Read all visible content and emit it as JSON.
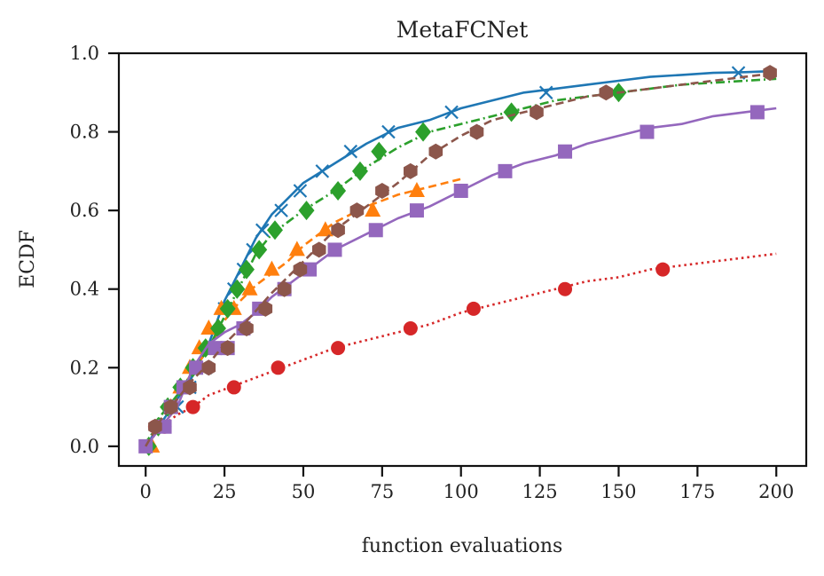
{
  "chart_data": {
    "type": "line",
    "title": "MetaFCNet",
    "xlabel": "function evaluations",
    "ylabel": "ECDF",
    "xlim": [
      -8.5,
      209.5
    ],
    "ylim": [
      -0.05,
      1.0
    ],
    "xticks": [
      0,
      25,
      50,
      75,
      100,
      125,
      150,
      175,
      200
    ],
    "yticks": [
      0.0,
      0.2,
      0.4,
      0.6,
      0.8,
      1.0
    ],
    "xtick_labels": [
      "0",
      "25",
      "50",
      "75",
      "100",
      "125",
      "150",
      "175",
      "200"
    ],
    "ytick_labels": [
      "0.0",
      "0.2",
      "0.4",
      "0.6",
      "0.8",
      "1.0"
    ],
    "grid": false,
    "legend": "none",
    "series": [
      {
        "color": "#1f77b4",
        "linestyle": "solid",
        "marker": "x",
        "x": [
          0,
          5,
          10,
          15,
          20,
          25,
          30,
          35,
          40,
          45,
          50,
          60,
          70,
          80,
          90,
          100,
          110,
          120,
          130,
          140,
          150,
          160,
          170,
          180,
          190,
          200
        ],
        "y": [
          0.0,
          0.06,
          0.12,
          0.18,
          0.26,
          0.37,
          0.45,
          0.53,
          0.59,
          0.63,
          0.67,
          0.72,
          0.77,
          0.81,
          0.83,
          0.86,
          0.88,
          0.9,
          0.91,
          0.92,
          0.93,
          0.94,
          0.945,
          0.95,
          0.952,
          0.955
        ],
        "marker_x": [
          0,
          5,
          10,
          14,
          19,
          22,
          25,
          28,
          31,
          34,
          37,
          43,
          49,
          56,
          65,
          77,
          97,
          127,
          188
        ],
        "marker_y": [
          0.0,
          0.05,
          0.1,
          0.15,
          0.2,
          0.25,
          0.35,
          0.4,
          0.45,
          0.5,
          0.55,
          0.6,
          0.65,
          0.7,
          0.75,
          0.8,
          0.85,
          0.9,
          0.95
        ]
      },
      {
        "color": "#ff7f0e",
        "linestyle": "dashed",
        "marker": "triangle",
        "x": [
          0,
          5,
          10,
          15,
          20,
          25,
          30,
          35,
          40,
          45,
          50,
          55,
          60,
          65,
          70,
          80,
          90,
          100
        ],
        "y": [
          0.0,
          0.07,
          0.13,
          0.19,
          0.25,
          0.32,
          0.37,
          0.41,
          0.44,
          0.47,
          0.51,
          0.54,
          0.57,
          0.59,
          0.61,
          0.64,
          0.66,
          0.68
        ],
        "marker_x": [
          2,
          5,
          8,
          11,
          14,
          17,
          20,
          24,
          28,
          33,
          40,
          48,
          57,
          72,
          86
        ],
        "marker_y": [
          0.0,
          0.05,
          0.1,
          0.15,
          0.2,
          0.25,
          0.3,
          0.35,
          0.35,
          0.4,
          0.45,
          0.5,
          0.55,
          0.6,
          0.65
        ]
      },
      {
        "color": "#2ca02c",
        "linestyle": "dashdot",
        "marker": "diamond",
        "x": [
          0,
          5,
          10,
          15,
          20,
          25,
          30,
          35,
          40,
          50,
          60,
          70,
          80,
          90,
          100,
          110,
          120,
          130,
          140,
          150,
          160,
          170,
          180,
          190,
          200
        ],
        "y": [
          0.0,
          0.08,
          0.13,
          0.19,
          0.25,
          0.33,
          0.41,
          0.49,
          0.54,
          0.6,
          0.65,
          0.71,
          0.76,
          0.8,
          0.82,
          0.84,
          0.86,
          0.88,
          0.89,
          0.9,
          0.91,
          0.92,
          0.925,
          0.93,
          0.935
        ],
        "marker_x": [
          1,
          4,
          7,
          11,
          15,
          19,
          23,
          26,
          29,
          32,
          36,
          41,
          51,
          61,
          68,
          74,
          88,
          116,
          150
        ],
        "marker_y": [
          0.0,
          0.05,
          0.1,
          0.15,
          0.2,
          0.25,
          0.3,
          0.35,
          0.4,
          0.45,
          0.5,
          0.55,
          0.6,
          0.65,
          0.7,
          0.75,
          0.8,
          0.85,
          0.9
        ]
      },
      {
        "color": "#d62728",
        "linestyle": "dotted",
        "marker": "circle",
        "x": [
          0,
          5,
          10,
          15,
          20,
          30,
          40,
          50,
          60,
          70,
          80,
          90,
          100,
          110,
          120,
          130,
          140,
          150,
          160,
          170,
          180,
          190,
          200
        ],
        "y": [
          0.0,
          0.05,
          0.08,
          0.1,
          0.13,
          0.16,
          0.19,
          0.22,
          0.25,
          0.27,
          0.29,
          0.31,
          0.34,
          0.36,
          0.38,
          0.4,
          0.42,
          0.43,
          0.45,
          0.46,
          0.47,
          0.48,
          0.49
        ],
        "marker_x": [
          3,
          6,
          15,
          28,
          42,
          61,
          84,
          104,
          133,
          164
        ],
        "marker_y": [
          0.05,
          0.05,
          0.1,
          0.15,
          0.2,
          0.25,
          0.3,
          0.35,
          0.4,
          0.45
        ]
      },
      {
        "color": "#9467bd",
        "linestyle": "solid",
        "marker": "square",
        "x": [
          0,
          5,
          10,
          15,
          20,
          25,
          30,
          35,
          40,
          45,
          50,
          60,
          70,
          80,
          90,
          100,
          110,
          120,
          130,
          140,
          150,
          160,
          170,
          180,
          190,
          200
        ],
        "y": [
          0.0,
          0.05,
          0.1,
          0.2,
          0.26,
          0.29,
          0.31,
          0.34,
          0.38,
          0.41,
          0.44,
          0.5,
          0.54,
          0.58,
          0.61,
          0.65,
          0.69,
          0.72,
          0.74,
          0.77,
          0.79,
          0.81,
          0.82,
          0.84,
          0.85,
          0.86
        ],
        "marker_x": [
          0,
          6,
          8,
          12,
          16,
          22,
          26,
          31,
          36,
          44,
          52,
          60,
          73,
          86,
          100,
          114,
          133,
          159,
          194
        ],
        "marker_y": [
          0.0,
          0.05,
          0.1,
          0.15,
          0.2,
          0.25,
          0.25,
          0.3,
          0.35,
          0.4,
          0.45,
          0.5,
          0.55,
          0.6,
          0.65,
          0.7,
          0.75,
          0.8,
          0.85
        ]
      },
      {
        "color": "#8c564b",
        "linestyle": "dashed",
        "marker": "hexagon",
        "x": [
          0,
          5,
          10,
          15,
          20,
          25,
          30,
          40,
          50,
          60,
          70,
          80,
          90,
          100,
          110,
          120,
          130,
          140,
          150,
          160,
          170,
          180,
          190,
          200
        ],
        "y": [
          0.0,
          0.07,
          0.12,
          0.17,
          0.21,
          0.26,
          0.3,
          0.39,
          0.47,
          0.55,
          0.61,
          0.67,
          0.74,
          0.79,
          0.83,
          0.85,
          0.87,
          0.89,
          0.9,
          0.91,
          0.92,
          0.93,
          0.94,
          0.95
        ],
        "marker_x": [
          3,
          8,
          14,
          20,
          26,
          32,
          38,
          44,
          49,
          55,
          61,
          67,
          75,
          84,
          92,
          105,
          124,
          146,
          198
        ],
        "marker_y": [
          0.05,
          0.1,
          0.15,
          0.2,
          0.25,
          0.3,
          0.35,
          0.4,
          0.45,
          0.5,
          0.55,
          0.6,
          0.65,
          0.7,
          0.75,
          0.8,
          0.85,
          0.9,
          0.95
        ]
      }
    ]
  }
}
